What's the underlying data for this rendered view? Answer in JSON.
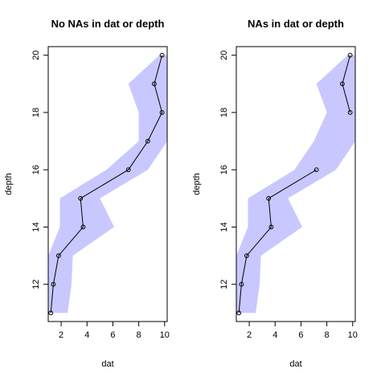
{
  "chart_data": [
    {
      "type": "line",
      "title": "No NAs in dat or depth",
      "xlabel": "dat",
      "ylabel": "depth",
      "xlim": [
        1,
        10.2
      ],
      "ylim": [
        10.7,
        20.3
      ],
      "xticks": [
        2,
        4,
        6,
        8,
        10
      ],
      "yticks": [
        12,
        14,
        16,
        18,
        20
      ],
      "grid": false,
      "series": [
        {
          "points": [
            {
              "x": 1.2,
              "y": 11
            },
            {
              "x": 1.4,
              "y": 12
            },
            {
              "x": 1.8,
              "y": 13
            },
            {
              "x": 3.7,
              "y": 14
            },
            {
              "x": 3.5,
              "y": 15
            },
            {
              "x": 7.2,
              "y": 16
            },
            {
              "x": 8.7,
              "y": 17
            },
            {
              "x": 9.8,
              "y": 18
            },
            {
              "x": 9.2,
              "y": 19
            },
            {
              "x": 9.8,
              "y": 20
            }
          ]
        }
      ],
      "band": {
        "color": "#c8c8ff",
        "lower": [
          {
            "x": 1.0,
            "y": 11
          },
          {
            "x": 1.0,
            "y": 12
          },
          {
            "x": 1.0,
            "y": 13
          },
          {
            "x": 1.9,
            "y": 14
          },
          {
            "x": 1.9,
            "y": 15
          },
          {
            "x": 5.5,
            "y": 16
          },
          {
            "x": 8.0,
            "y": 17
          },
          {
            "x": 8.0,
            "y": 18
          },
          {
            "x": 7.2,
            "y": 19
          },
          {
            "x": 9.6,
            "y": 20
          }
        ],
        "upper": [
          {
            "x": 2.5,
            "y": 11
          },
          {
            "x": 2.8,
            "y": 12
          },
          {
            "x": 2.9,
            "y": 13
          },
          {
            "x": 6.1,
            "y": 14
          },
          {
            "x": 5.0,
            "y": 15
          },
          {
            "x": 8.7,
            "y": 16
          },
          {
            "x": 10.2,
            "y": 17
          },
          {
            "x": 10.2,
            "y": 18
          },
          {
            "x": 10.2,
            "y": 19
          },
          {
            "x": 10.2,
            "y": 20
          }
        ]
      }
    },
    {
      "type": "line",
      "title": "NAs in dat or depth",
      "xlabel": "dat",
      "ylabel": "depth",
      "xlim": [
        1,
        10.2
      ],
      "ylim": [
        10.7,
        20.3
      ],
      "xticks": [
        2,
        4,
        6,
        8,
        10
      ],
      "yticks": [
        12,
        14,
        16,
        18,
        20
      ],
      "grid": false,
      "series": [
        {
          "segments": [
            [
              {
                "x": 1.2,
                "y": 11
              },
              {
                "x": 1.4,
                "y": 12
              },
              {
                "x": 1.8,
                "y": 13
              },
              {
                "x": 3.7,
                "y": 14
              },
              {
                "x": 3.5,
                "y": 15
              },
              {
                "x": 7.2,
                "y": 16
              }
            ],
            [
              {
                "x": 9.8,
                "y": 18
              },
              {
                "x": 9.2,
                "y": 19
              },
              {
                "x": 9.8,
                "y": 20
              }
            ]
          ]
        }
      ],
      "band": {
        "color": "#c8c8ff",
        "lower": [
          {
            "x": 1.0,
            "y": 11
          },
          {
            "x": 1.0,
            "y": 12
          },
          {
            "x": 1.0,
            "y": 13
          },
          {
            "x": 1.9,
            "y": 14
          },
          {
            "x": 1.9,
            "y": 15
          },
          {
            "x": 5.5,
            "y": 16
          },
          {
            "x": 7.0,
            "y": 17
          },
          {
            "x": 8.0,
            "y": 18
          },
          {
            "x": 7.2,
            "y": 19
          },
          {
            "x": 9.6,
            "y": 20
          }
        ],
        "upper": [
          {
            "x": 2.5,
            "y": 11
          },
          {
            "x": 2.8,
            "y": 12
          },
          {
            "x": 2.9,
            "y": 13
          },
          {
            "x": 6.1,
            "y": 14
          },
          {
            "x": 5.0,
            "y": 15
          },
          {
            "x": 8.7,
            "y": 16
          },
          {
            "x": 10.2,
            "y": 17
          },
          {
            "x": 10.2,
            "y": 18
          },
          {
            "x": 10.2,
            "y": 19
          },
          {
            "x": 10.2,
            "y": 20
          }
        ]
      }
    }
  ]
}
